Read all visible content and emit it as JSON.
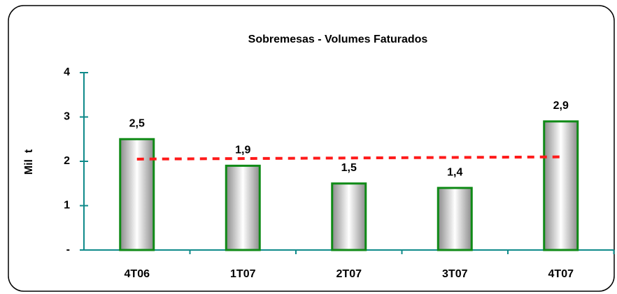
{
  "chart_data": {
    "type": "bar",
    "title": "Sobremesas - Volumes Faturados",
    "y_label": "Mil  t",
    "categories": [
      "4T06",
      "1T07",
      "2T07",
      "3T07",
      "4T07"
    ],
    "values": [
      2.5,
      1.9,
      1.5,
      1.4,
      2.9
    ],
    "value_labels": [
      "2,5",
      "1,9",
      "1,5",
      "1,4",
      "2,9"
    ],
    "color": "#0f8a16",
    "ylim": [
      0,
      4
    ],
    "yticks": [
      {
        "value": 0,
        "label": "-"
      },
      1,
      2,
      3,
      4
    ],
    "trend_line": {
      "values": [
        2.05,
        2.1
      ],
      "color": "#ff1a1a"
    }
  }
}
